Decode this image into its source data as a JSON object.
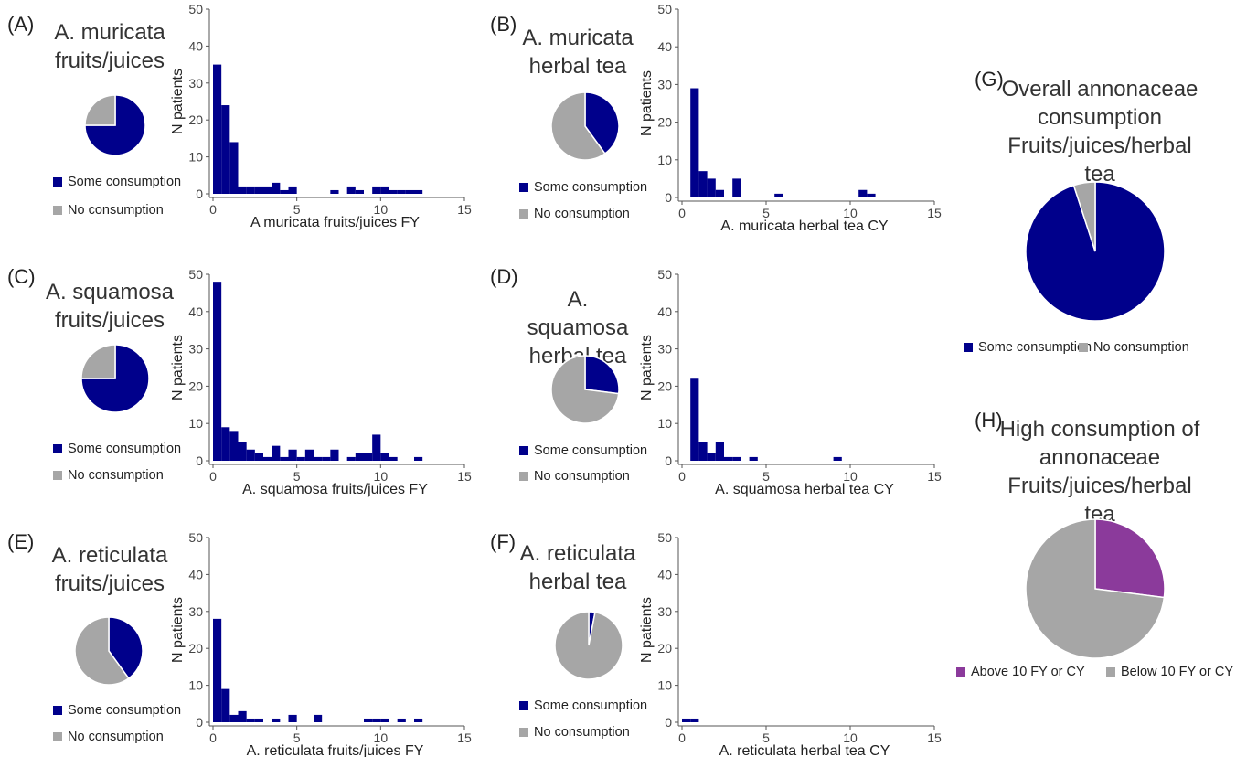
{
  "colors": {
    "consumption": "#00008B",
    "no_consumption": "#A6A6A6",
    "high": "#8B3A9B",
    "axis": "#555555"
  },
  "legend_labels": {
    "some": "Some consumption",
    "none": "No consumption",
    "above": "Above 10 FY or CY",
    "below": "Below 10 FY or CY"
  },
  "panels": [
    {
      "letter": "(A)",
      "title_lines": [
        "A. muricata",
        "fruits/juices"
      ]
    },
    {
      "letter": "(B)",
      "title_lines": [
        "A. muricata",
        "herbal tea"
      ]
    },
    {
      "letter": "(C)",
      "title_lines": [
        "A. squamosa",
        "fruits/juices"
      ]
    },
    {
      "letter": "(D)",
      "title_lines": [
        "A. squamosa",
        "herbal tea"
      ]
    },
    {
      "letter": "(E)",
      "title_lines": [
        "A. reticulata",
        "fruits/juices"
      ]
    },
    {
      "letter": "(F)",
      "title_lines": [
        "A. reticulata",
        "herbal tea"
      ]
    },
    {
      "letter": "(G)",
      "title_lines": [
        "Overall annonaceae",
        "consumption",
        "Fruits/juices/herbal tea"
      ]
    },
    {
      "letter": "(H)",
      "title_lines": [
        "High consumption of",
        "annonaceae",
        "Fruits/juices/herbal tea"
      ]
    }
  ],
  "chart_data": [
    {
      "id": "A-pie",
      "type": "pie",
      "slices": [
        {
          "label": "Some consumption",
          "value": 75
        },
        {
          "label": "No consumption",
          "value": 25
        }
      ]
    },
    {
      "id": "A-hist",
      "type": "bar",
      "xlabel": "A muricata fruits/juices FY",
      "ylabel": "N patients",
      "xlim": [
        0,
        15
      ],
      "ylim": [
        0,
        50
      ],
      "xticks": [
        0,
        5,
        10,
        15
      ],
      "yticks": [
        0,
        10,
        20,
        30,
        40,
        50
      ],
      "bin_width": 0.5,
      "x": [
        0.25,
        0.75,
        1.25,
        1.75,
        2.25,
        2.75,
        3.25,
        3.75,
        4.25,
        4.75,
        7.25,
        8.25,
        8.75,
        9.75,
        10.25,
        10.75,
        11.25,
        11.75,
        12.25
      ],
      "values": [
        35,
        24,
        14,
        2,
        2,
        2,
        2,
        3,
        1,
        2,
        1,
        2,
        1,
        2,
        2,
        1,
        1,
        1,
        1
      ]
    },
    {
      "id": "B-pie",
      "type": "pie",
      "slices": [
        {
          "label": "Some consumption",
          "value": 40
        },
        {
          "label": "No consumption",
          "value": 60
        }
      ]
    },
    {
      "id": "B-hist",
      "type": "bar",
      "xlabel": "A. muricata herbal tea CY",
      "ylabel": "N patients",
      "xlim": [
        0,
        15
      ],
      "ylim": [
        0,
        50
      ],
      "xticks": [
        0,
        5,
        10,
        15
      ],
      "yticks": [
        0,
        10,
        20,
        30,
        40,
        50
      ],
      "bin_width": 0.5,
      "x": [
        0.75,
        1.25,
        1.75,
        2.25,
        3.25,
        5.75,
        10.75,
        11.25
      ],
      "values": [
        29,
        7,
        5,
        2,
        5,
        1,
        2,
        1
      ]
    },
    {
      "id": "C-pie",
      "type": "pie",
      "slices": [
        {
          "label": "Some consumption",
          "value": 75
        },
        {
          "label": "No consumption",
          "value": 25
        }
      ]
    },
    {
      "id": "C-hist",
      "type": "bar",
      "xlabel": "A. squamosa fruits/juices FY",
      "ylabel": "N patients",
      "xlim": [
        0,
        15
      ],
      "ylim": [
        0,
        50
      ],
      "xticks": [
        0,
        5,
        10,
        15
      ],
      "yticks": [
        0,
        10,
        20,
        30,
        40,
        50
      ],
      "bin_width": 0.5,
      "x": [
        0.25,
        0.75,
        1.25,
        1.75,
        2.25,
        2.75,
        3.25,
        3.75,
        4.25,
        4.75,
        5.25,
        5.75,
        6.25,
        6.75,
        7.25,
        8.25,
        8.75,
        9.25,
        9.75,
        10.25,
        10.75,
        12.25
      ],
      "values": [
        48,
        9,
        8,
        5,
        3,
        2,
        1,
        4,
        1,
        3,
        1,
        3,
        1,
        1,
        3,
        1,
        2,
        2,
        7,
        2,
        1,
        1
      ]
    },
    {
      "id": "D-pie",
      "type": "pie",
      "slices": [
        {
          "label": "Some consumption",
          "value": 27
        },
        {
          "label": "No consumption",
          "value": 73
        }
      ]
    },
    {
      "id": "D-hist",
      "type": "bar",
      "xlabel": "A. squamosa herbal tea CY",
      "ylabel": "N patients",
      "xlim": [
        0,
        15
      ],
      "ylim": [
        0,
        50
      ],
      "xticks": [
        0,
        5,
        10,
        15
      ],
      "yticks": [
        0,
        10,
        20,
        30,
        40,
        50
      ],
      "bin_width": 0.5,
      "x": [
        0.75,
        1.25,
        1.75,
        2.25,
        2.75,
        3.25,
        4.25,
        9.25
      ],
      "values": [
        22,
        5,
        2,
        5,
        1,
        1,
        1,
        1
      ]
    },
    {
      "id": "E-pie",
      "type": "pie",
      "slices": [
        {
          "label": "Some consumption",
          "value": 40
        },
        {
          "label": "No consumption",
          "value": 60
        }
      ]
    },
    {
      "id": "E-hist",
      "type": "bar",
      "xlabel": "A. reticulata fruits/juices FY",
      "ylabel": "N patients",
      "xlim": [
        0,
        15
      ],
      "ylim": [
        0,
        50
      ],
      "xticks": [
        0,
        5,
        10,
        15
      ],
      "yticks": [
        0,
        10,
        20,
        30,
        40,
        50
      ],
      "bin_width": 0.5,
      "x": [
        0.25,
        0.75,
        1.25,
        1.75,
        2.25,
        2.75,
        3.75,
        4.75,
        6.25,
        9.25,
        9.75,
        10.25,
        11.25,
        12.25
      ],
      "values": [
        28,
        9,
        2,
        3,
        1,
        1,
        1,
        2,
        2,
        1,
        1,
        1,
        1,
        1
      ]
    },
    {
      "id": "F-pie",
      "type": "pie",
      "slices": [
        {
          "label": "Some consumption",
          "value": 3
        },
        {
          "label": "No consumption",
          "value": 97
        }
      ]
    },
    {
      "id": "F-hist",
      "type": "bar",
      "xlabel": "A. reticulata herbal tea CY",
      "ylabel": "N patients",
      "xlim": [
        0,
        15
      ],
      "ylim": [
        0,
        50
      ],
      "xticks": [
        0,
        5,
        10,
        15
      ],
      "yticks": [
        0,
        10,
        20,
        30,
        40,
        50
      ],
      "bin_width": 0.5,
      "x": [
        0.25,
        0.75
      ],
      "values": [
        1,
        1
      ]
    },
    {
      "id": "G-pie",
      "type": "pie",
      "slices": [
        {
          "label": "Some consumption",
          "value": 95
        },
        {
          "label": "No consumption",
          "value": 5
        }
      ]
    },
    {
      "id": "H-pie",
      "type": "pie",
      "slices": [
        {
          "label": "Above 10 FY or CY",
          "value": 27
        },
        {
          "label": "Below 10 FY or CY",
          "value": 73
        }
      ]
    }
  ]
}
